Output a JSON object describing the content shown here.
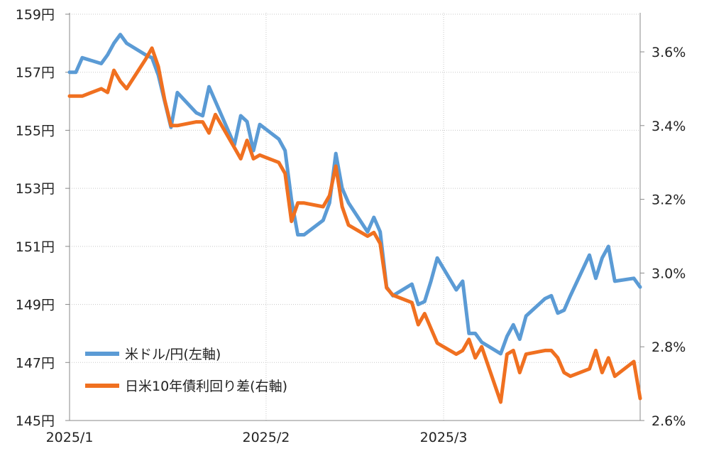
{
  "chart_data": {
    "type": "line",
    "x_ticks": [
      "2025/1",
      "2025/2",
      "2025/3"
    ],
    "y_left": {
      "ticks": [
        "145円",
        "147円",
        "149円",
        "151円",
        "153円",
        "155円",
        "157円",
        "159円"
      ],
      "range": [
        145,
        159
      ]
    },
    "y_right": {
      "ticks": [
        "2.6%",
        "2.8%",
        "3.0%",
        "3.2%",
        "3.4%",
        "3.6%"
      ],
      "range": [
        2.6,
        3.6
      ]
    },
    "x_range": [
      "2025-01-01",
      "2025-03-31"
    ],
    "grid": true,
    "legend_position": "bottom-left",
    "series": [
      {
        "name": "米ドル/円(左軸)",
        "axis": "left",
        "color": "#5b9bd5",
        "points": [
          [
            "2025-01-01",
            157.0
          ],
          [
            "2025-01-02",
            157.0
          ],
          [
            "2025-01-03",
            157.5
          ],
          [
            "2025-01-06",
            157.3
          ],
          [
            "2025-01-07",
            157.6
          ],
          [
            "2025-01-08",
            158.0
          ],
          [
            "2025-01-09",
            158.3
          ],
          [
            "2025-01-10",
            158.0
          ],
          [
            "2025-01-13",
            157.6
          ],
          [
            "2025-01-14",
            157.5
          ],
          [
            "2025-01-15",
            156.9
          ],
          [
            "2025-01-16",
            156.0
          ],
          [
            "2025-01-17",
            155.1
          ],
          [
            "2025-01-18",
            156.3
          ],
          [
            "2025-01-21",
            155.6
          ],
          [
            "2025-01-22",
            155.5
          ],
          [
            "2025-01-23",
            156.5
          ],
          [
            "2025-01-24",
            156.0
          ],
          [
            "2025-01-27",
            154.5
          ],
          [
            "2025-01-28",
            155.5
          ],
          [
            "2025-01-29",
            155.3
          ],
          [
            "2025-01-30",
            154.3
          ],
          [
            "2025-01-31",
            155.2
          ],
          [
            "2025-02-03",
            154.7
          ],
          [
            "2025-02-04",
            154.3
          ],
          [
            "2025-02-05",
            152.6
          ],
          [
            "2025-02-06",
            151.4
          ],
          [
            "2025-02-07",
            151.4
          ],
          [
            "2025-02-10",
            151.9
          ],
          [
            "2025-02-11",
            152.5
          ],
          [
            "2025-02-12",
            154.2
          ],
          [
            "2025-02-13",
            153.0
          ],
          [
            "2025-02-14",
            152.5
          ],
          [
            "2025-02-17",
            151.5
          ],
          [
            "2025-02-18",
            152.0
          ],
          [
            "2025-02-19",
            151.5
          ],
          [
            "2025-02-20",
            149.6
          ],
          [
            "2025-02-21",
            149.3
          ],
          [
            "2025-02-24",
            149.7
          ],
          [
            "2025-02-25",
            149.0
          ],
          [
            "2025-02-26",
            149.1
          ],
          [
            "2025-02-27",
            149.8
          ],
          [
            "2025-02-28",
            150.6
          ],
          [
            "2025-03-03",
            149.5
          ],
          [
            "2025-03-04",
            149.8
          ],
          [
            "2025-03-05",
            148.0
          ],
          [
            "2025-03-06",
            148.0
          ],
          [
            "2025-03-07",
            147.7
          ],
          [
            "2025-03-10",
            147.3
          ],
          [
            "2025-03-11",
            147.9
          ],
          [
            "2025-03-12",
            148.3
          ],
          [
            "2025-03-13",
            147.8
          ],
          [
            "2025-03-14",
            148.6
          ],
          [
            "2025-03-17",
            149.2
          ],
          [
            "2025-03-18",
            149.3
          ],
          [
            "2025-03-19",
            148.7
          ],
          [
            "2025-03-20",
            148.8
          ],
          [
            "2025-03-21",
            149.3
          ],
          [
            "2025-03-24",
            150.7
          ],
          [
            "2025-03-25",
            149.9
          ],
          [
            "2025-03-26",
            150.6
          ],
          [
            "2025-03-27",
            151.0
          ],
          [
            "2025-03-28",
            149.8
          ],
          [
            "2025-03-31",
            149.9
          ],
          [
            "2025-04-01",
            149.6
          ]
        ]
      },
      {
        "name": "日米10年債利回り差(右軸)",
        "axis": "right",
        "color": "#f07020",
        "points": [
          [
            "2025-01-01",
            3.48
          ],
          [
            "2025-01-02",
            3.48
          ],
          [
            "2025-01-03",
            3.48
          ],
          [
            "2025-01-06",
            3.5
          ],
          [
            "2025-01-07",
            3.49
          ],
          [
            "2025-01-08",
            3.55
          ],
          [
            "2025-01-09",
            3.52
          ],
          [
            "2025-01-10",
            3.5
          ],
          [
            "2025-01-13",
            3.58
          ],
          [
            "2025-01-14",
            3.61
          ],
          [
            "2025-01-15",
            3.56
          ],
          [
            "2025-01-16",
            3.47
          ],
          [
            "2025-01-17",
            3.4
          ],
          [
            "2025-01-18",
            3.4
          ],
          [
            "2025-01-21",
            3.41
          ],
          [
            "2025-01-22",
            3.41
          ],
          [
            "2025-01-23",
            3.38
          ],
          [
            "2025-01-24",
            3.43
          ],
          [
            "2025-01-27",
            3.34
          ],
          [
            "2025-01-28",
            3.31
          ],
          [
            "2025-01-29",
            3.36
          ],
          [
            "2025-01-30",
            3.31
          ],
          [
            "2025-01-31",
            3.32
          ],
          [
            "2025-02-03",
            3.3
          ],
          [
            "2025-02-04",
            3.27
          ],
          [
            "2025-02-05",
            3.14
          ],
          [
            "2025-02-06",
            3.19
          ],
          [
            "2025-02-07",
            3.19
          ],
          [
            "2025-02-10",
            3.18
          ],
          [
            "2025-02-11",
            3.21
          ],
          [
            "2025-02-12",
            3.29
          ],
          [
            "2025-02-13",
            3.18
          ],
          [
            "2025-02-14",
            3.13
          ],
          [
            "2025-02-17",
            3.1
          ],
          [
            "2025-02-18",
            3.11
          ],
          [
            "2025-02-19",
            3.08
          ],
          [
            "2025-02-20",
            2.96
          ],
          [
            "2025-02-21",
            2.94
          ],
          [
            "2025-02-24",
            2.92
          ],
          [
            "2025-02-25",
            2.86
          ],
          [
            "2025-02-26",
            2.89
          ],
          [
            "2025-02-27",
            2.85
          ],
          [
            "2025-02-28",
            2.81
          ],
          [
            "2025-03-03",
            2.78
          ],
          [
            "2025-03-04",
            2.79
          ],
          [
            "2025-03-05",
            2.82
          ],
          [
            "2025-03-06",
            2.77
          ],
          [
            "2025-03-07",
            2.8
          ],
          [
            "2025-03-10",
            2.65
          ],
          [
            "2025-03-11",
            2.78
          ],
          [
            "2025-03-12",
            2.79
          ],
          [
            "2025-03-13",
            2.73
          ],
          [
            "2025-03-14",
            2.78
          ],
          [
            "2025-03-17",
            2.79
          ],
          [
            "2025-03-18",
            2.79
          ],
          [
            "2025-03-19",
            2.77
          ],
          [
            "2025-03-20",
            2.73
          ],
          [
            "2025-03-21",
            2.72
          ],
          [
            "2025-03-24",
            2.74
          ],
          [
            "2025-03-25",
            2.79
          ],
          [
            "2025-03-26",
            2.73
          ],
          [
            "2025-03-27",
            2.77
          ],
          [
            "2025-03-28",
            2.72
          ],
          [
            "2025-03-31",
            2.76
          ],
          [
            "2025-04-01",
            2.66
          ]
        ]
      }
    ]
  }
}
